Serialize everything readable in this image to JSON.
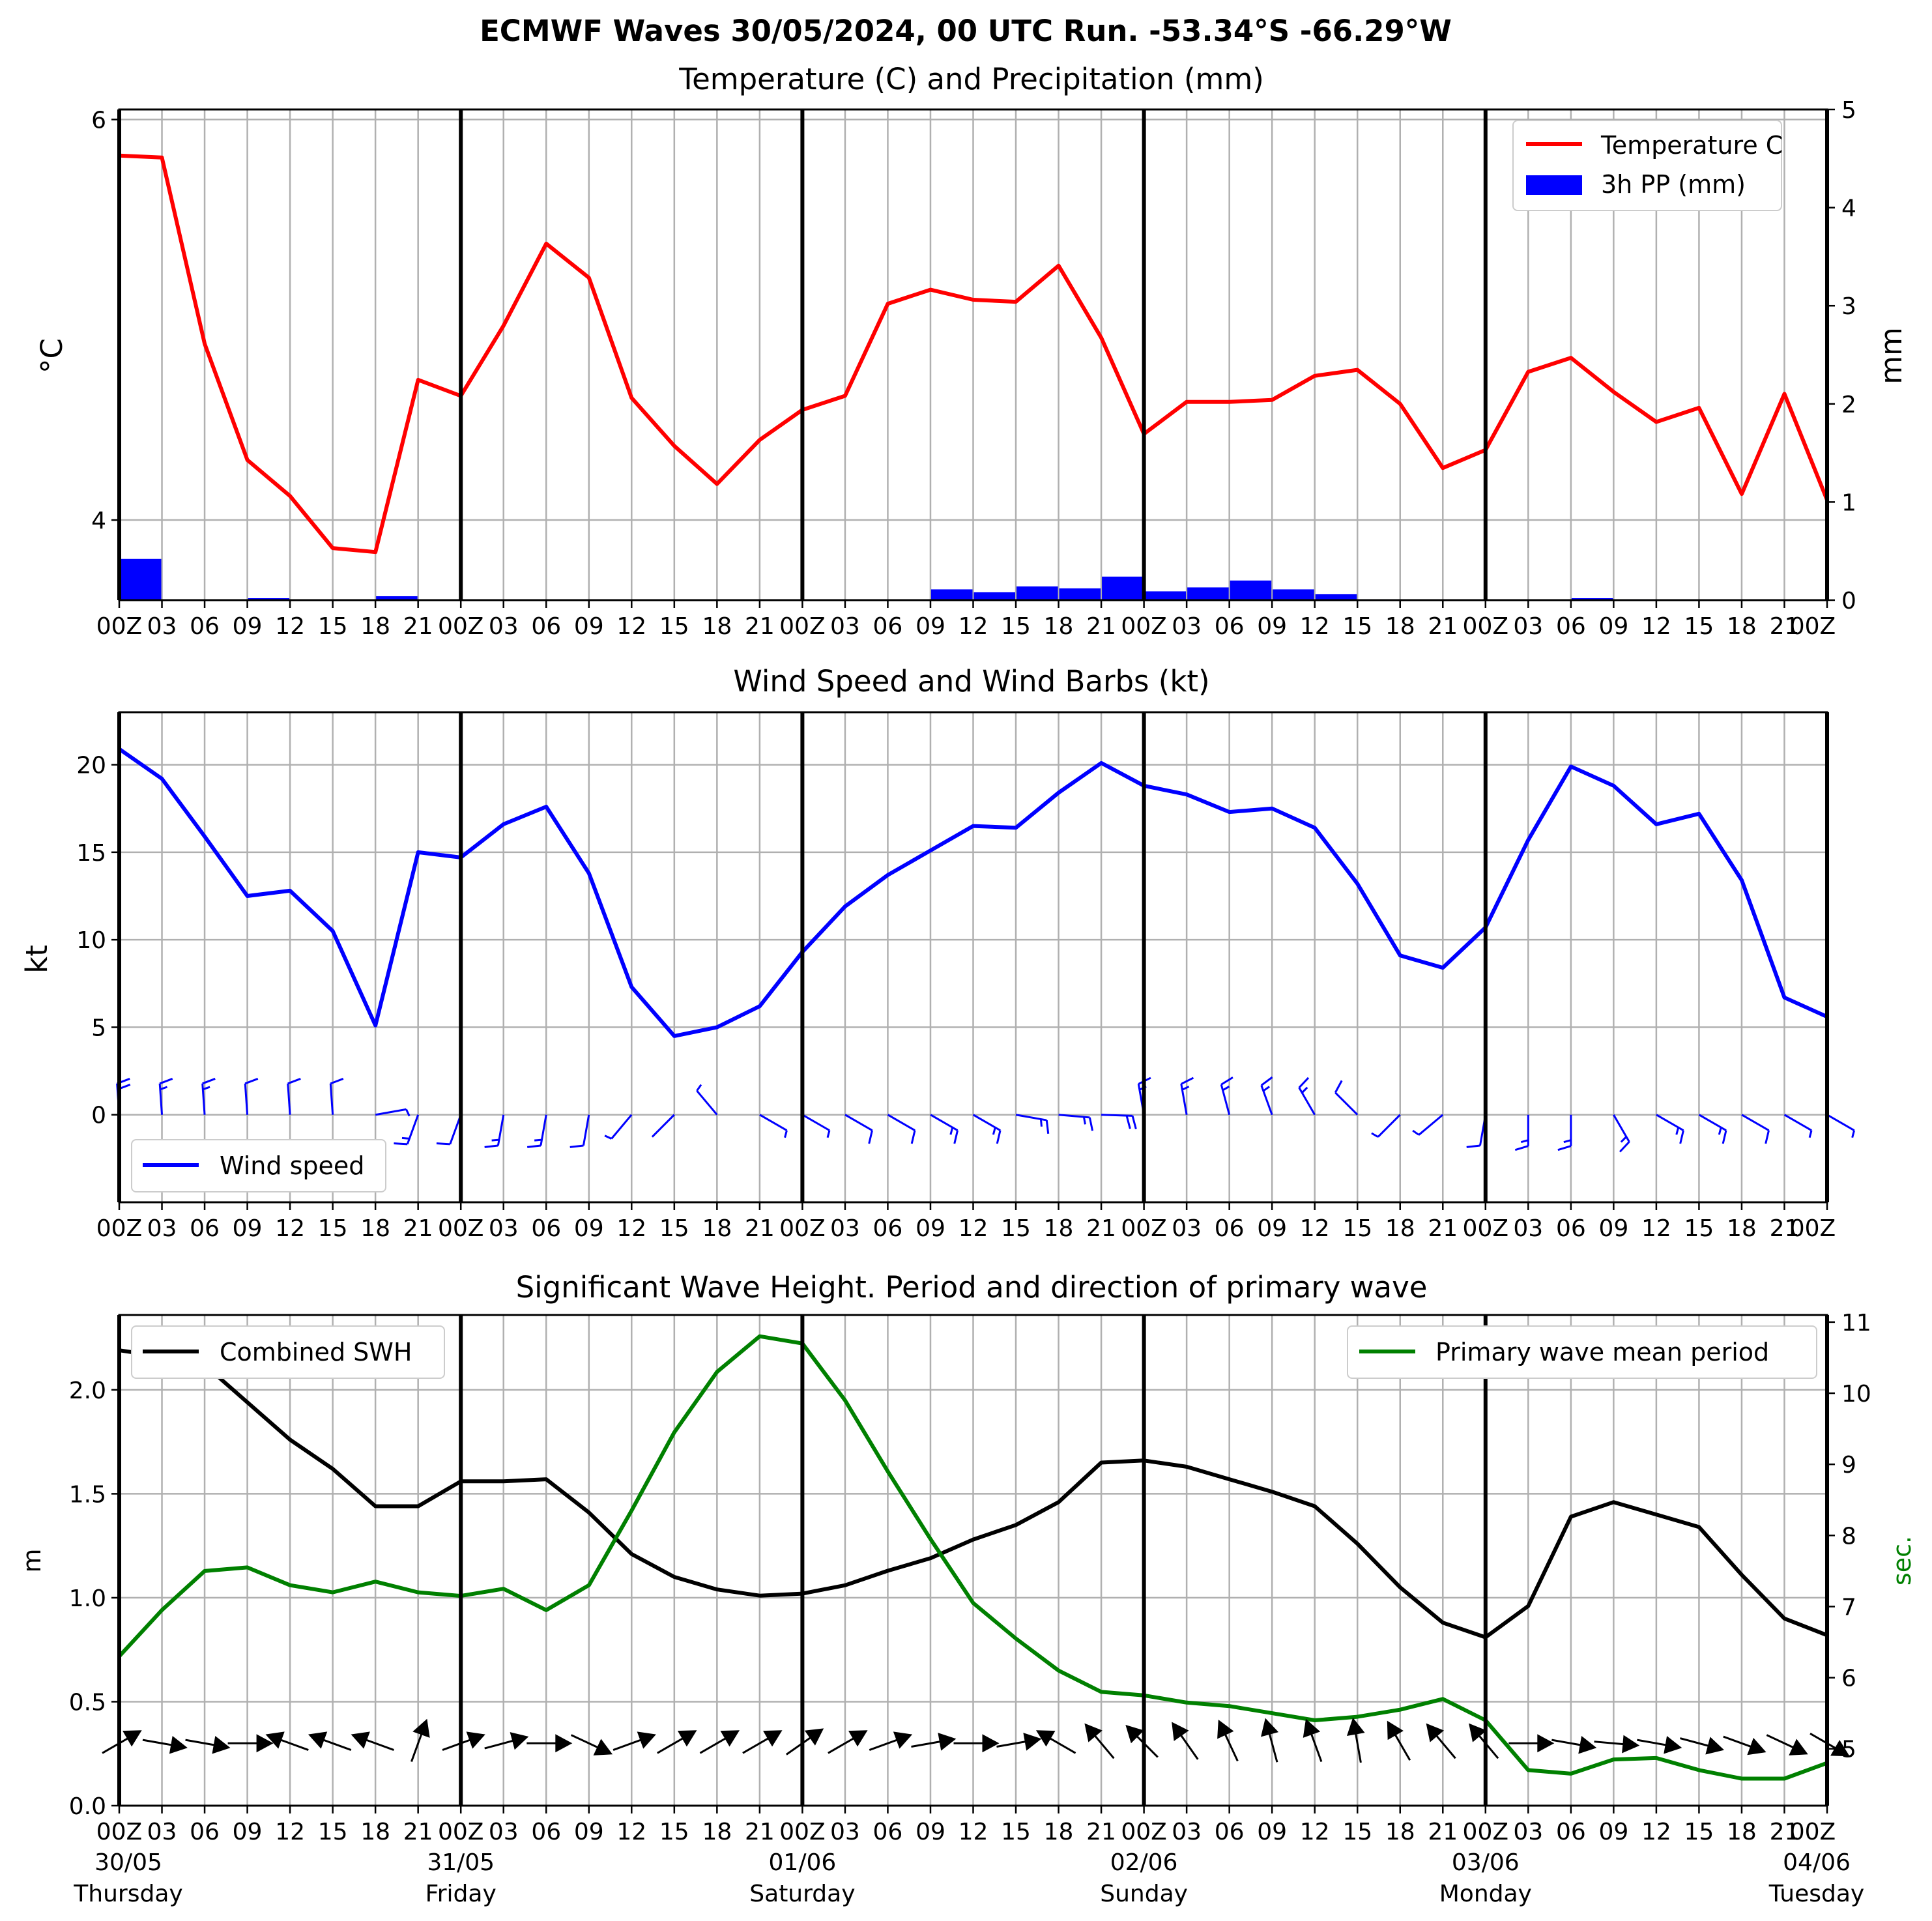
{
  "figure": {
    "suptitle": "ECMWF Waves 30/05/2024, 00 UTC Run. -53.34°S -66.29°W"
  },
  "colors": {
    "temperature": "#ff0000",
    "precipitation": "#0000ff",
    "wind": "#0000ff",
    "swh": "#000000",
    "period": "#008000",
    "grid": "#b0b0b0"
  },
  "time_axis": {
    "tick_labels": [
      "00Z",
      "03",
      "06",
      "09",
      "12",
      "15",
      "18",
      "21",
      "00Z",
      "03",
      "06",
      "09",
      "12",
      "15",
      "18",
      "21",
      "00Z",
      "03",
      "06",
      "09",
      "12",
      "15",
      "18",
      "21",
      "00Z",
      "03",
      "06",
      "09",
      "12",
      "15",
      "18",
      "21",
      "00Z",
      "03",
      "06",
      "09",
      "12",
      "15",
      "18",
      "21",
      "00Z"
    ],
    "day_labels": [
      {
        "date": "30/05",
        "day": "Thursday",
        "index": 0
      },
      {
        "date": "31/05",
        "day": "Friday",
        "index": 8
      },
      {
        "date": "01/06",
        "day": "Saturday",
        "index": 16
      },
      {
        "date": "02/06",
        "day": "Sunday",
        "index": 24
      },
      {
        "date": "03/06",
        "day": "Monday",
        "index": 32
      },
      {
        "date": "04/06",
        "day": "Tuesday",
        "index": 40
      }
    ],
    "step_hours": 3
  },
  "chart_data": [
    {
      "type": "line",
      "title": "Temperature (C) and Precipitation (mm)",
      "ylabel": "°C",
      "ylabel_right": "mm",
      "ylim": [
        3.6,
        6.05
      ],
      "yticks": [
        4,
        6
      ],
      "ylim_right": [
        0,
        5
      ],
      "yticks_right": [
        0,
        1,
        2,
        3,
        4,
        5
      ],
      "legend_position": "upper right",
      "series": [
        {
          "name": "Temperature C",
          "kind": "line",
          "axis": "left",
          "color": "#ff0000",
          "values": [
            5.82,
            5.81,
            4.88,
            4.3,
            4.12,
            3.86,
            3.84,
            4.7,
            4.62,
            4.97,
            5.38,
            5.21,
            4.61,
            4.37,
            4.18,
            4.4,
            4.55,
            4.62,
            5.08,
            5.15,
            5.1,
            5.09,
            5.27,
            4.91,
            4.43,
            4.59,
            4.59,
            4.6,
            4.72,
            4.75,
            4.58,
            4.26,
            4.35,
            4.74,
            4.81,
            4.64,
            4.49,
            4.56,
            4.13,
            4.63,
            4.1
          ]
        },
        {
          "name": "3h PP (mm)",
          "kind": "bar",
          "axis": "right",
          "color": "#0000ff",
          "values": [
            0.42,
            0,
            0,
            0.02,
            0,
            0,
            0.04,
            0,
            0,
            0,
            0,
            0,
            0,
            0,
            0,
            0,
            0,
            0,
            0,
            0.11,
            0.08,
            0.14,
            0.12,
            0.24,
            0.09,
            0.13,
            0.2,
            0.11,
            0.06,
            0.01,
            0,
            0,
            0,
            0,
            0.02,
            0.01,
            0,
            0,
            0,
            0,
            0
          ]
        }
      ]
    },
    {
      "type": "line",
      "title": "Wind Speed and Wind Barbs (kt)",
      "ylabel": "kt",
      "ylim": [
        -5,
        23
      ],
      "yticks": [
        0,
        5,
        10,
        15,
        20
      ],
      "legend_position": "lower left",
      "series": [
        {
          "name": "Wind speed",
          "kind": "line",
          "color": "#0000ff",
          "values": [
            20.9,
            19.2,
            15.9,
            12.5,
            12.8,
            10.5,
            5.1,
            15.0,
            14.7,
            16.6,
            17.6,
            13.8,
            7.3,
            4.5,
            5.0,
            6.2,
            9.3,
            11.9,
            13.7,
            15.1,
            16.5,
            16.4,
            18.4,
            20.1,
            18.8,
            18.3,
            17.3,
            17.5,
            16.4,
            13.2,
            9.1,
            8.4,
            10.7,
            15.7,
            19.9,
            18.8,
            16.6,
            17.2,
            13.4,
            6.7,
            5.6
          ]
        },
        {
          "name": "",
          "kind": "barbs",
          "color": "#0000ff",
          "direction_from_deg": [
            356,
            356,
            356,
            356,
            356,
            356,
            80,
            200,
            200,
            190,
            190,
            190,
            220,
            225,
            320,
            120,
            120,
            120,
            120,
            120,
            120,
            100,
            95,
            92,
            350,
            350,
            345,
            340,
            330,
            315,
            225,
            230,
            190,
            180,
            180,
            150,
            120,
            120,
            120,
            120,
            120
          ],
          "speed_kt": [
            20.9,
            19.2,
            15.9,
            12.5,
            12.8,
            10.5,
            5.1,
            15.0,
            14.7,
            16.6,
            17.6,
            13.8,
            7.3,
            4.5,
            5.0,
            6.2,
            9.3,
            11.9,
            13.7,
            15.1,
            16.5,
            16.4,
            18.4,
            20.1,
            18.8,
            18.3,
            17.3,
            17.5,
            16.4,
            13.2,
            9.1,
            8.4,
            10.7,
            15.7,
            19.9,
            18.8,
            16.6,
            17.2,
            13.4,
            6.7,
            5.6
          ]
        }
      ]
    },
    {
      "type": "line",
      "title": "Significant Wave Height. Period and direction of primary wave",
      "ylabel": "m",
      "ylabel_right": "sec.",
      "ylim": [
        0,
        2.36
      ],
      "yticks": [
        0.0,
        0.5,
        1.0,
        1.5,
        2.0
      ],
      "ylim_right": [
        4.2,
        11.1
      ],
      "yticks_right": [
        5,
        6,
        7,
        8,
        9,
        10,
        11
      ],
      "series": [
        {
          "name": "Combined SWH",
          "kind": "line",
          "axis": "left",
          "color": "#000000",
          "legend_position": "upper left",
          "values": [
            2.19,
            2.16,
            2.12,
            1.94,
            1.76,
            1.62,
            1.44,
            1.44,
            1.56,
            1.56,
            1.57,
            1.41,
            1.21,
            1.1,
            1.04,
            1.01,
            1.02,
            1.06,
            1.13,
            1.19,
            1.28,
            1.35,
            1.46,
            1.65,
            1.66,
            1.63,
            1.57,
            1.51,
            1.44,
            1.26,
            1.05,
            0.88,
            0.81,
            0.96,
            1.39,
            1.46,
            1.4,
            1.34,
            1.11,
            0.9,
            0.82
          ]
        },
        {
          "name": "Primary wave mean period",
          "kind": "line",
          "axis": "right",
          "color": "#008000",
          "legend_position": "upper right",
          "values": [
            6.3,
            6.95,
            7.5,
            7.55,
            7.3,
            7.2,
            7.35,
            7.2,
            7.15,
            7.25,
            6.95,
            7.3,
            8.35,
            9.45,
            10.3,
            10.8,
            10.7,
            9.9,
            8.9,
            7.95,
            7.05,
            6.55,
            6.1,
            5.8,
            5.75,
            5.65,
            5.6,
            5.5,
            5.4,
            5.45,
            5.55,
            5.7,
            5.4,
            4.7,
            4.65,
            4.85,
            4.87,
            4.7,
            4.58,
            4.58,
            4.8
          ]
        },
        {
          "name": "",
          "kind": "direction_arrows",
          "color": "#000000",
          "direction_to_deg": [
            60,
            100,
            100,
            90,
            290,
            290,
            290,
            20,
            70,
            75,
            90,
            115,
            70,
            60,
            60,
            60,
            55,
            60,
            70,
            80,
            90,
            80,
            300,
            320,
            315,
            325,
            335,
            345,
            340,
            350,
            330,
            320,
            320,
            90,
            100,
            95,
            100,
            105,
            110,
            115,
            120
          ]
        }
      ]
    }
  ]
}
